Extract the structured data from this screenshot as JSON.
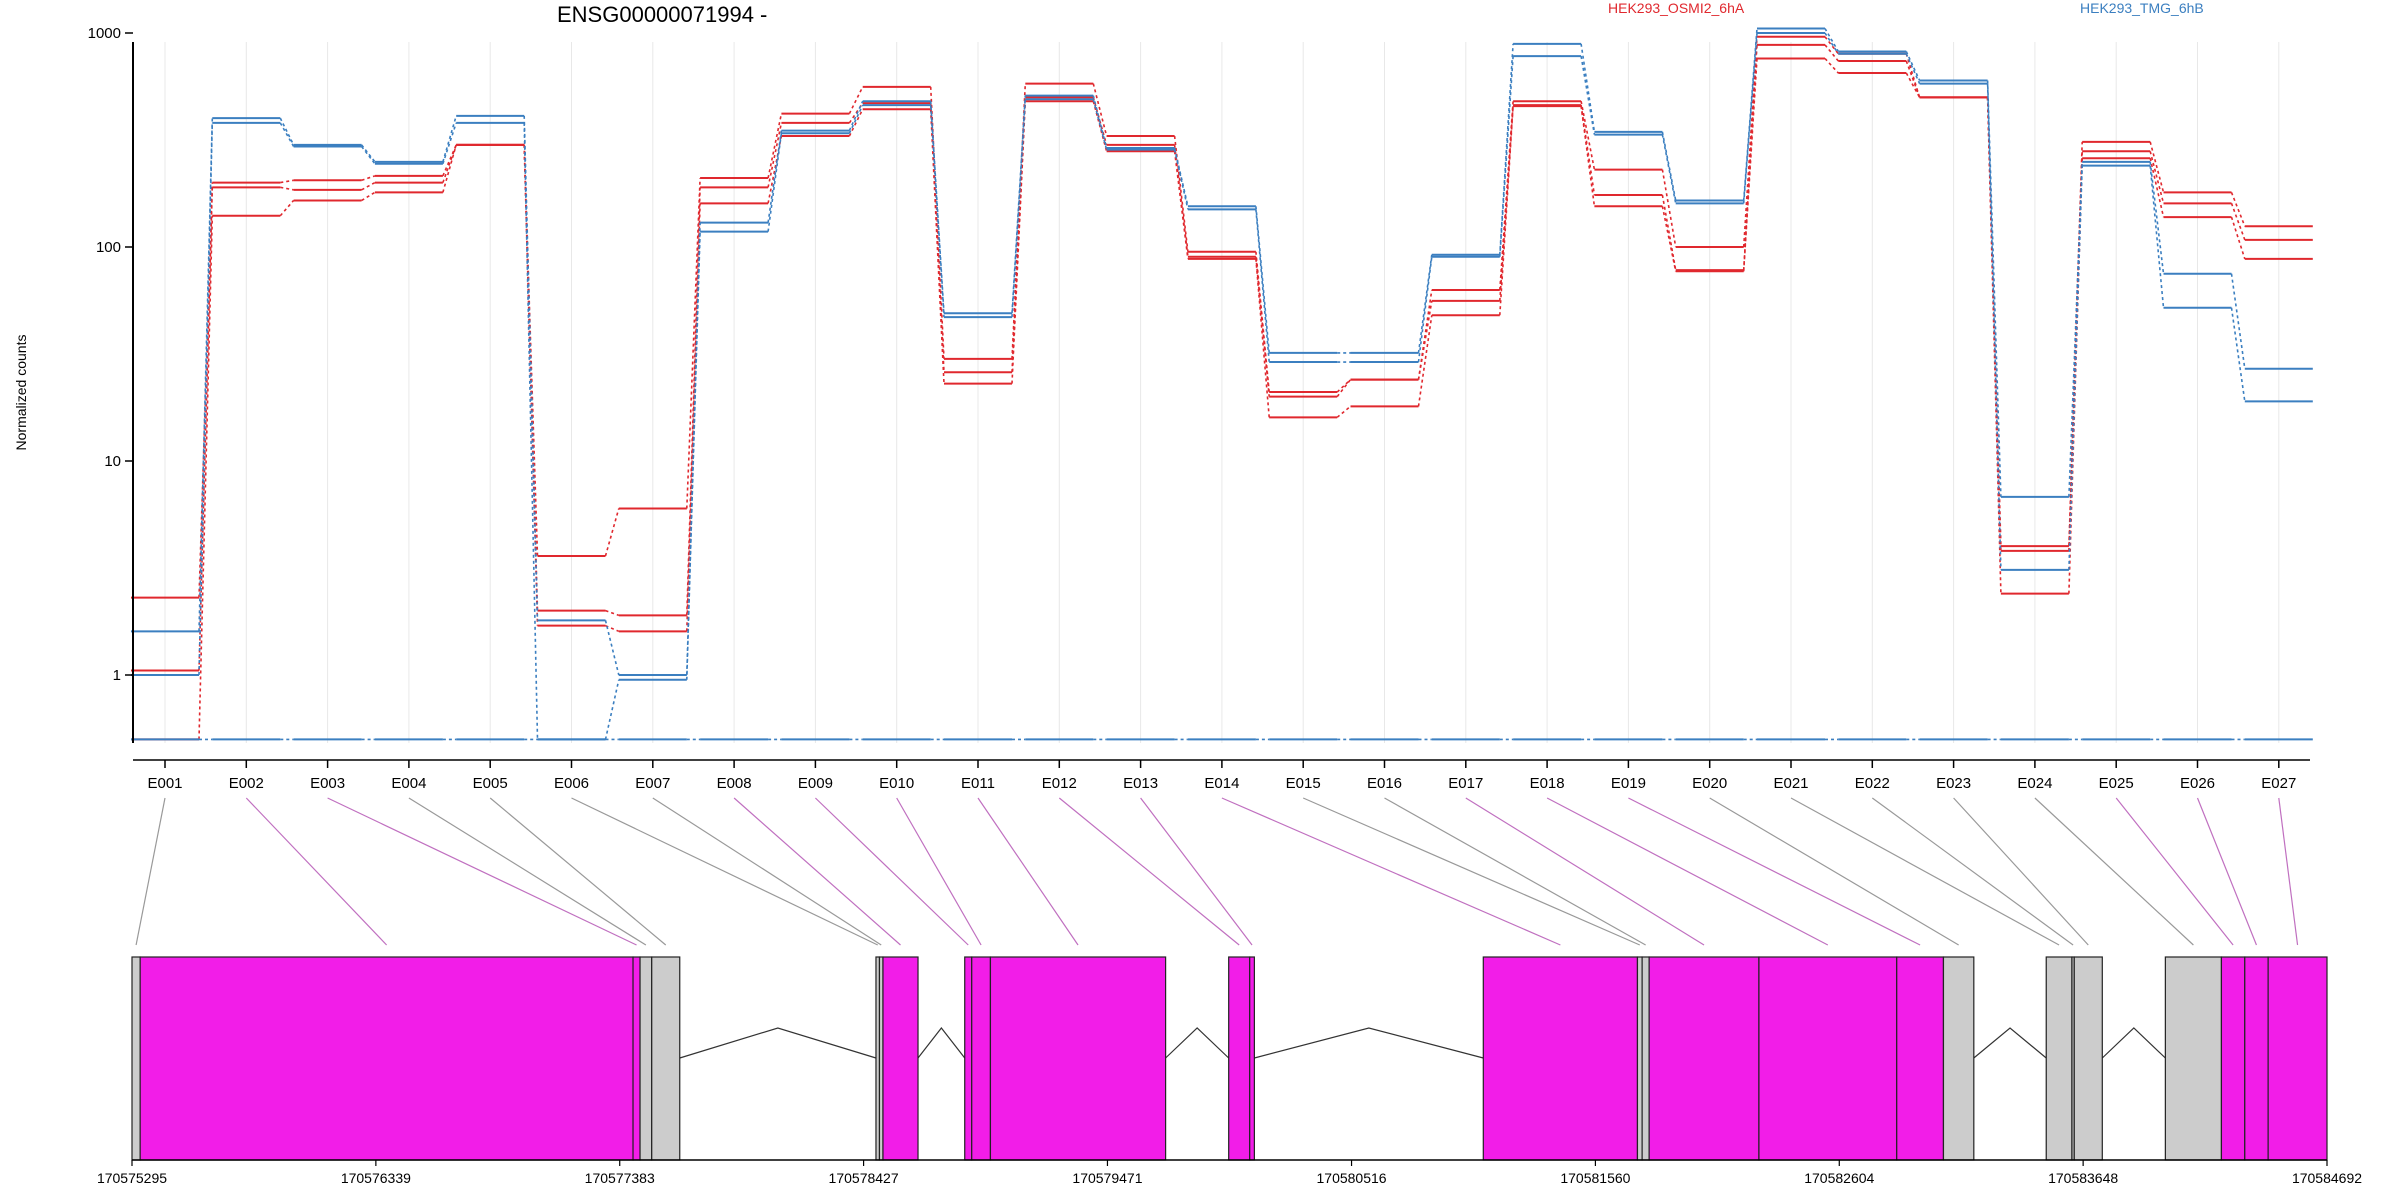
{
  "colors": {
    "osmi2": "#e0282e",
    "tmg": "#3b7fc0",
    "exon_tested": "#f21de8",
    "exon_untested": "#cccccc",
    "connector_tested": "#c070c0",
    "connector_untested": "#999999",
    "axis": "#000000",
    "grid": "#e8e8e8"
  },
  "chart_data": {
    "type": "line",
    "title": "ENSG00000071994 -",
    "ylabel": "Normalized counts",
    "yscale": "log",
    "ylim": [
      0.5,
      1400
    ],
    "y_ticks": [
      1,
      10,
      100,
      1000
    ],
    "y_tick_labels": [
      "1",
      "10",
      "100",
      "1000"
    ],
    "legend": [
      {
        "name": "HEK293_OSMI2_6hA",
        "color": "#e0282e"
      },
      {
        "name": "HEK293_TMG_6hB",
        "color": "#3b7fc0"
      }
    ],
    "legend_position": "top",
    "categories": [
      "E001",
      "E002",
      "E003",
      "E004",
      "E005",
      "E006",
      "E007",
      "E008",
      "E009",
      "E010",
      "E011",
      "E012",
      "E013",
      "E014",
      "E015",
      "E016",
      "E017",
      "E018",
      "E019",
      "E020",
      "E021",
      "E022",
      "E023",
      "E024",
      "E025",
      "E026",
      "E027"
    ],
    "series": [
      {
        "group": "HEK293_OSMI2_6hA",
        "values": [
          2.3,
          200,
          205,
          215,
          300,
          3.6,
          6.0,
          210,
          420,
          560,
          30,
          580,
          330,
          95,
          21,
          24,
          63,
          480,
          230,
          100,
          960,
          800,
          500,
          4.0,
          310,
          180,
          125
        ]
      },
      {
        "group": "HEK293_OSMI2_6hA",
        "values": [
          1.05,
          190,
          185,
          200,
          300,
          2.0,
          1.9,
          190,
          380,
          470,
          26,
          500,
          300,
          90,
          20,
          24,
          56,
          460,
          175,
          78,
          880,
          740,
          500,
          3.8,
          280,
          160,
          108
        ]
      },
      {
        "group": "HEK293_OSMI2_6hA",
        "values": [
          0.5,
          140,
          165,
          180,
          300,
          1.7,
          1.6,
          160,
          330,
          440,
          23,
          480,
          280,
          88,
          16,
          18,
          48,
          455,
          155,
          77,
          760,
          650,
          500,
          2.4,
          260,
          138,
          88
        ]
      },
      {
        "group": "HEK293_TMG_6hB",
        "values": [
          1.6,
          400,
          300,
          250,
          410,
          1.8,
          1.0,
          130,
          350,
          480,
          49,
          510,
          290,
          155,
          32,
          32,
          92,
          890,
          345,
          165,
          1050,
          820,
          600,
          6.8,
          250,
          75,
          27
        ]
      },
      {
        "group": "HEK293_TMG_6hB",
        "values": [
          1.0,
          380,
          295,
          245,
          380,
          0.5,
          0.95,
          118,
          340,
          460,
          47,
          490,
          285,
          150,
          29,
          29,
          90,
          780,
          335,
          160,
          1000,
          800,
          580,
          3.1,
          240,
          52,
          19
        ]
      },
      {
        "group": "HEK293_TMG_6hB",
        "values": [
          0.5,
          0.5,
          0.5,
          0.5,
          0.5,
          0.5,
          0.5,
          0.5,
          0.5,
          0.5,
          0.5,
          0.5,
          0.5,
          0.5,
          0.5,
          0.5,
          0.5,
          0.5,
          0.5,
          0.5,
          0.5,
          0.5,
          0.5,
          0.5,
          0.5,
          0.5,
          0.5
        ]
      }
    ],
    "gene_model": {
      "coordinate_range": [
        170575295,
        170584692
      ],
      "coordinate_ticks": [
        "170575295",
        "170576339",
        "170577383",
        "170578427",
        "170579471",
        "170580516",
        "170581560",
        "170582604",
        "170583648",
        "170584692"
      ],
      "exons": [
        {
          "id": "E001",
          "start": 170575295,
          "end": 170575330,
          "tested": false
        },
        {
          "id": "E002",
          "start": 170575330,
          "end": 170577440,
          "tested": true
        },
        {
          "id": "E003",
          "start": 170577440,
          "end": 170577470,
          "tested": true
        },
        {
          "id": "E004",
          "start": 170577470,
          "end": 170577520,
          "tested": false
        },
        {
          "id": "E005",
          "start": 170577520,
          "end": 170577640,
          "tested": false
        },
        {
          "id": "E006",
          "start": 170578480,
          "end": 170578495,
          "tested": false
        },
        {
          "id": "E007",
          "start": 170578495,
          "end": 170578510,
          "tested": false
        },
        {
          "id": "E008",
          "start": 170578510,
          "end": 170578660,
          "tested": true
        },
        {
          "id": "E009",
          "start": 170578860,
          "end": 170578890,
          "tested": true
        },
        {
          "id": "E010",
          "start": 170578890,
          "end": 170578970,
          "tested": true
        },
        {
          "id": "E011",
          "start": 170578970,
          "end": 170579720,
          "tested": true
        },
        {
          "id": "E012",
          "start": 170579990,
          "end": 170580080,
          "tested": true
        },
        {
          "id": "E013",
          "start": 170580080,
          "end": 170580100,
          "tested": true
        },
        {
          "id": "E014",
          "start": 170581080,
          "end": 170581740,
          "tested": true
        },
        {
          "id": "E015",
          "start": 170581740,
          "end": 170581760,
          "tested": false
        },
        {
          "id": "E016",
          "start": 170581760,
          "end": 170581790,
          "tested": false
        },
        {
          "id": "E017",
          "start": 170581790,
          "end": 170582260,
          "tested": true
        },
        {
          "id": "E018",
          "start": 170582260,
          "end": 170582850,
          "tested": true
        },
        {
          "id": "E019",
          "start": 170582850,
          "end": 170583050,
          "tested": true
        },
        {
          "id": "E020",
          "start": 170583050,
          "end": 170583180,
          "tested": false
        },
        {
          "id": "E021",
          "start": 170583490,
          "end": 170583600,
          "tested": false
        },
        {
          "id": "E022",
          "start": 170583600,
          "end": 170583610,
          "tested": false
        },
        {
          "id": "E023",
          "start": 170583610,
          "end": 170583730,
          "tested": false
        },
        {
          "id": "E024",
          "start": 170584000,
          "end": 170584240,
          "tested": false
        },
        {
          "id": "E025",
          "start": 170584240,
          "end": 170584340,
          "tested": true
        },
        {
          "id": "E026",
          "start": 170584340,
          "end": 170584440,
          "tested": true
        },
        {
          "id": "E027",
          "start": 170584440,
          "end": 170584692,
          "tested": true
        }
      ],
      "intron_peaks": [
        {
          "from": 170577640,
          "to": 170578480
        },
        {
          "from": 170578660,
          "to": 170578860
        },
        {
          "from": 170579720,
          "to": 170579990
        },
        {
          "from": 170580100,
          "to": 170581080
        },
        {
          "from": 170583180,
          "to": 170583490
        },
        {
          "from": 170583730,
          "to": 170584000
        }
      ]
    }
  }
}
